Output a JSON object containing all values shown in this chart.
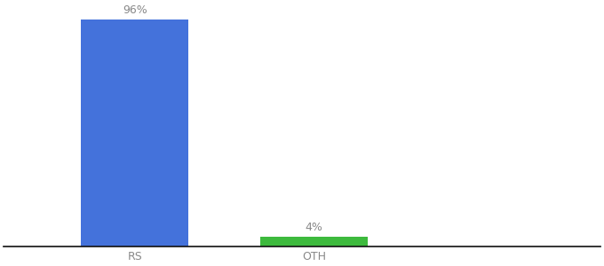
{
  "categories": [
    "RS",
    "OTH"
  ],
  "values": [
    96,
    4
  ],
  "bar_colors": [
    "#4472db",
    "#3dba3d"
  ],
  "labels": [
    "96%",
    "4%"
  ],
  "background_color": "#ffffff",
  "ylim": [
    0,
    100
  ],
  "x_positions": [
    0.22,
    0.52
  ],
  "bar_width": 0.18,
  "label_fontsize": 9,
  "tick_fontsize": 9,
  "title_fontsize": 11,
  "xlim": [
    0.0,
    1.0
  ]
}
